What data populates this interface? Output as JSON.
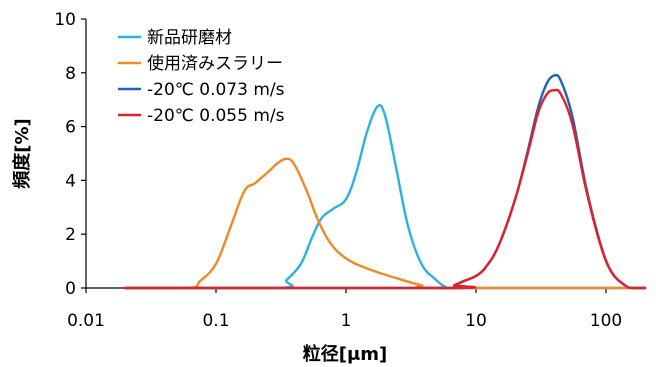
{
  "chart_data": {
    "type": "line",
    "title": "",
    "xlabel": "粒径[μm]",
    "ylabel": "頻度[%]",
    "x_scale": "log",
    "xlim": [
      0.01,
      200
    ],
    "ylim": [
      0,
      10
    ],
    "x_ticks": [
      0.01,
      0.1,
      1,
      10,
      100
    ],
    "x_tick_labels": [
      "0.01",
      "0.1",
      "1",
      "10",
      "100"
    ],
    "y_ticks": [
      0,
      2,
      4,
      6,
      8,
      10
    ],
    "y_tick_labels": [
      "0",
      "2",
      "4",
      "6",
      "8",
      "10"
    ],
    "grid": false,
    "legend_position": "top-left",
    "series": [
      {
        "name": "新品研磨材",
        "color": "#2EB0E0",
        "x": [
          0.02,
          0.3,
          0.35,
          0.45,
          0.55,
          0.65,
          0.8,
          1.0,
          1.2,
          1.45,
          1.75,
          2.0,
          2.4,
          3.0,
          3.8,
          4.8,
          5.8,
          7,
          200
        ],
        "y": [
          0,
          0,
          0.3,
          0.9,
          1.9,
          2.6,
          2.95,
          3.3,
          4.3,
          5.8,
          6.75,
          6.4,
          4.6,
          2.3,
          0.9,
          0.35,
          0.05,
          0,
          0
        ]
      },
      {
        "name": "使用済みスラリー",
        "color": "#F08A24",
        "x": [
          0.02,
          0.062,
          0.075,
          0.1,
          0.13,
          0.165,
          0.2,
          0.25,
          0.3,
          0.35,
          0.4,
          0.5,
          0.6,
          0.75,
          1.0,
          1.5,
          2.5,
          3.8,
          5,
          200
        ],
        "y": [
          0,
          0,
          0.25,
          0.9,
          2.3,
          3.6,
          3.9,
          4.3,
          4.65,
          4.8,
          4.6,
          3.6,
          2.6,
          1.7,
          1.1,
          0.7,
          0.35,
          0.1,
          0,
          0
        ]
      },
      {
        "name": "-20℃ 0.073 m/s",
        "color": "#2060C0",
        "x": [
          0.02,
          6.0,
          6.8,
          8,
          10,
          12,
          15,
          20,
          25,
          30,
          35,
          40,
          45,
          55,
          70,
          90,
          110,
          140,
          160,
          200
        ],
        "y": [
          0,
          0,
          0.1,
          0.25,
          0.45,
          0.8,
          1.6,
          3.3,
          5.1,
          6.7,
          7.6,
          7.9,
          7.7,
          6.4,
          3.8,
          1.7,
          0.6,
          0.1,
          0,
          0
        ]
      },
      {
        "name": "-20℃ 0.055 m/s",
        "color": "#E0202A",
        "x": [
          0.02,
          6.0,
          6.8,
          8,
          10,
          12,
          15,
          20,
          25,
          30,
          35,
          40,
          45,
          55,
          70,
          90,
          110,
          140,
          160,
          200
        ],
        "y": [
          0,
          0,
          0.1,
          0.25,
          0.45,
          0.8,
          1.6,
          3.3,
          5.0,
          6.5,
          7.2,
          7.35,
          7.2,
          6.1,
          3.7,
          1.65,
          0.6,
          0.1,
          0,
          0
        ]
      }
    ]
  }
}
